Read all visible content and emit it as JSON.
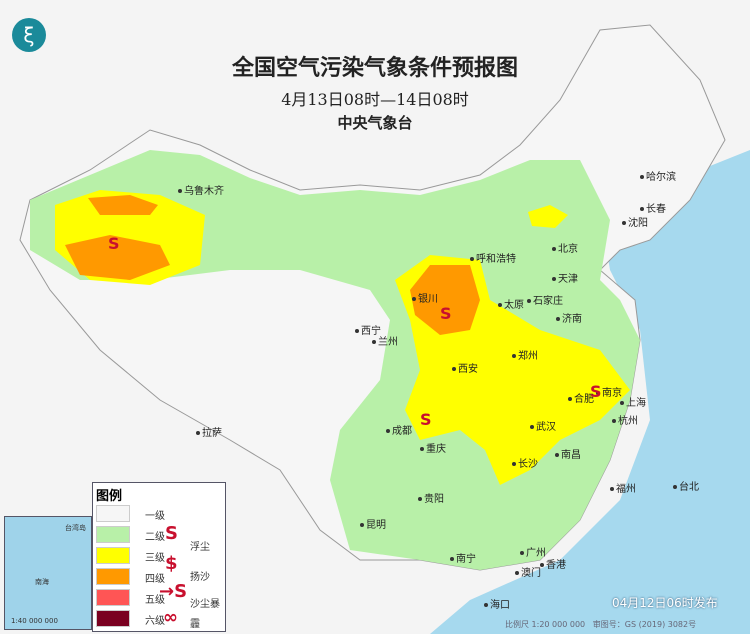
{
  "header": {
    "title": "全国空气污染气象条件预报图",
    "period": "4月13日08时—14日08时",
    "issuer": "中央气象台"
  },
  "colors": {
    "sea": "#a6d9ee",
    "level1": "#f6f6f6",
    "level2": "#b8f0a8",
    "level3": "#ffff00",
    "level4": "#ff9900",
    "level5": "#ff5555",
    "level6": "#7a0020",
    "symbol": "#c8102e"
  },
  "cities": [
    "乌鲁木齐",
    "哈尔滨",
    "长春",
    "沈阳",
    "北京",
    "天津",
    "呼和浩特",
    "银川",
    "太原",
    "石家庄",
    "济南",
    "西宁",
    "兰州",
    "西安",
    "郑州",
    "合肥",
    "南京",
    "上海",
    "成都",
    "重庆",
    "武汉",
    "杭州",
    "拉萨",
    "长沙",
    "南昌",
    "福州",
    "台北",
    "贵阳",
    "昆明",
    "南宁",
    "广州",
    "香港",
    "澳门",
    "海口"
  ],
  "legend": {
    "title": "图例",
    "levels": [
      "一级",
      "二级",
      "三级",
      "四级",
      "五级",
      "六级"
    ],
    "symbols": [
      {
        "icon": "floating-dust-icon",
        "label": "浮尘"
      },
      {
        "icon": "blowing-sand-icon",
        "label": "扬沙"
      },
      {
        "icon": "sandstorm-icon",
        "label": "沙尘暴"
      },
      {
        "icon": "haze-icon",
        "label": "霾"
      }
    ]
  },
  "inset": {
    "labels": [
      "南海",
      "台湾岛"
    ],
    "scale": "1:40 000 000"
  },
  "footer": {
    "issued": "04月12日06时发布",
    "scale": "比例尺 1:20 000 000",
    "map_number": "审图号：GS (2019) 3082号"
  }
}
